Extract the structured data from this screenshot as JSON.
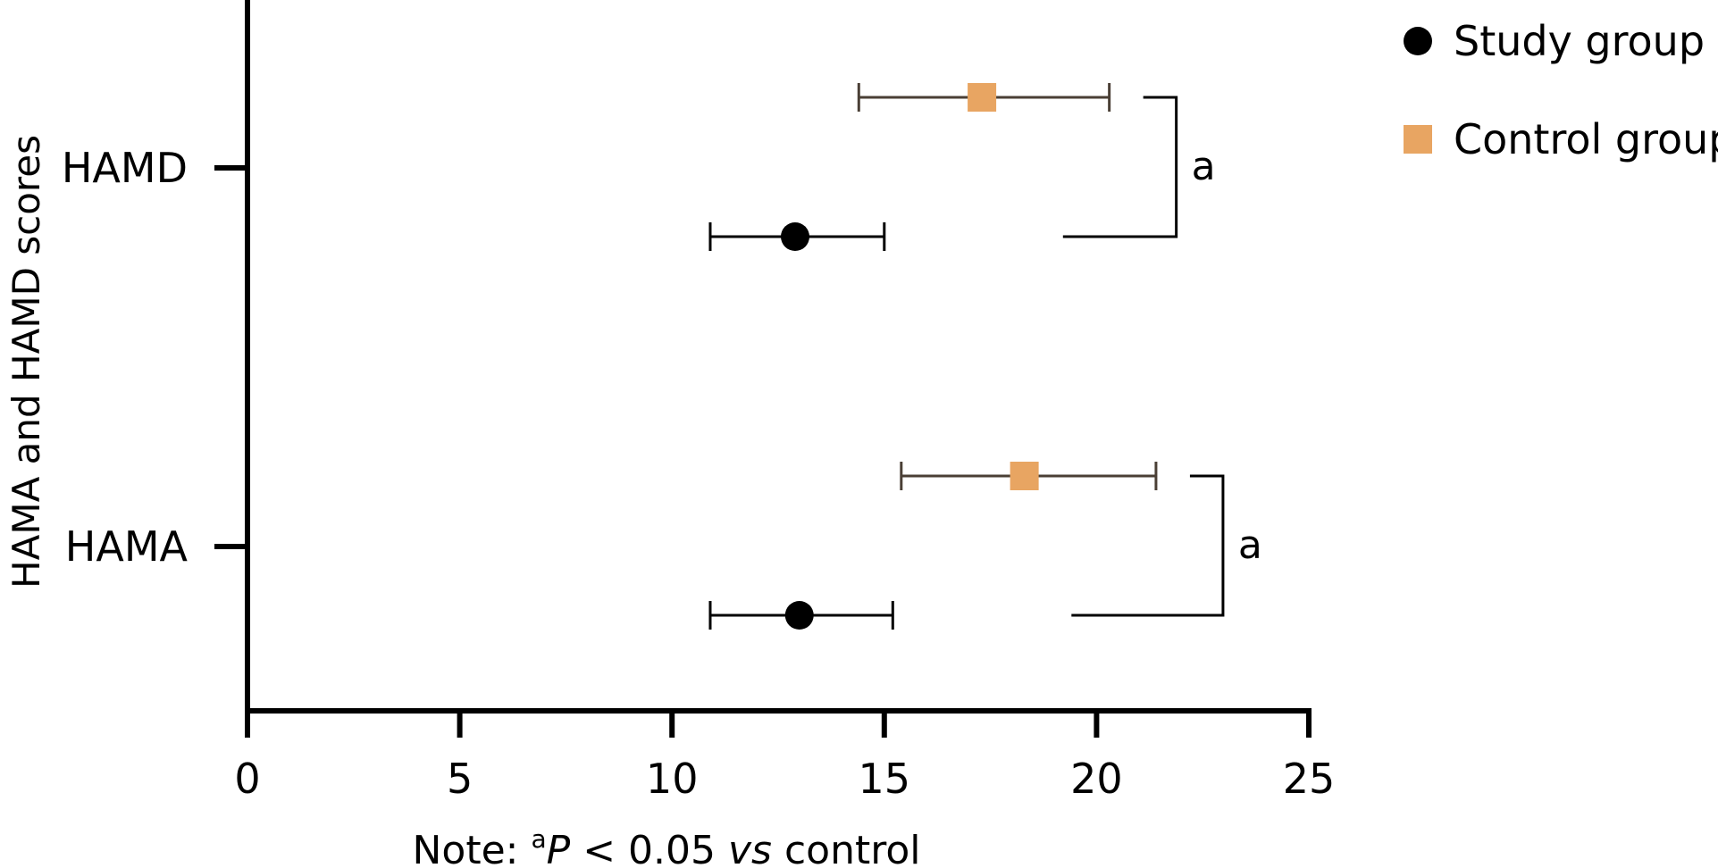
{
  "chart_data": {
    "type": "scatter",
    "orientation": "horizontal",
    "xlim": [
      0,
      25
    ],
    "x_ticks": [
      "0",
      "5",
      "10",
      "15",
      "20",
      "25"
    ],
    "ylabel": "HAMA and HAMD scores",
    "xlabel_note": {
      "prefix": "Note: ",
      "superscript": "a",
      "p": "P",
      "middle": " < 0.05 ",
      "vs": "vs",
      "suffix": " control"
    },
    "categories": [
      "HAMD",
      "HAMA"
    ],
    "series": [
      {
        "name": "Study group",
        "marker": "circle",
        "color": "#000000",
        "points": [
          {
            "category": "HAMD",
            "mean": 12.9,
            "low": 10.9,
            "high": 15.0
          },
          {
            "category": "HAMA",
            "mean": 13.0,
            "low": 10.9,
            "high": 15.2
          }
        ]
      },
      {
        "name": "Control group",
        "marker": "square",
        "color": "#E8A562",
        "errorbar_color": "#4A3F35",
        "points": [
          {
            "category": "HAMD",
            "mean": 17.3,
            "low": 14.4,
            "high": 20.3
          },
          {
            "category": "HAMA",
            "mean": 18.3,
            "low": 15.4,
            "high": 21.4
          }
        ]
      }
    ],
    "significance": [
      {
        "category": "HAMD",
        "label": "a"
      },
      {
        "category": "HAMA",
        "label": "a"
      }
    ],
    "legend_position": "top-right"
  }
}
